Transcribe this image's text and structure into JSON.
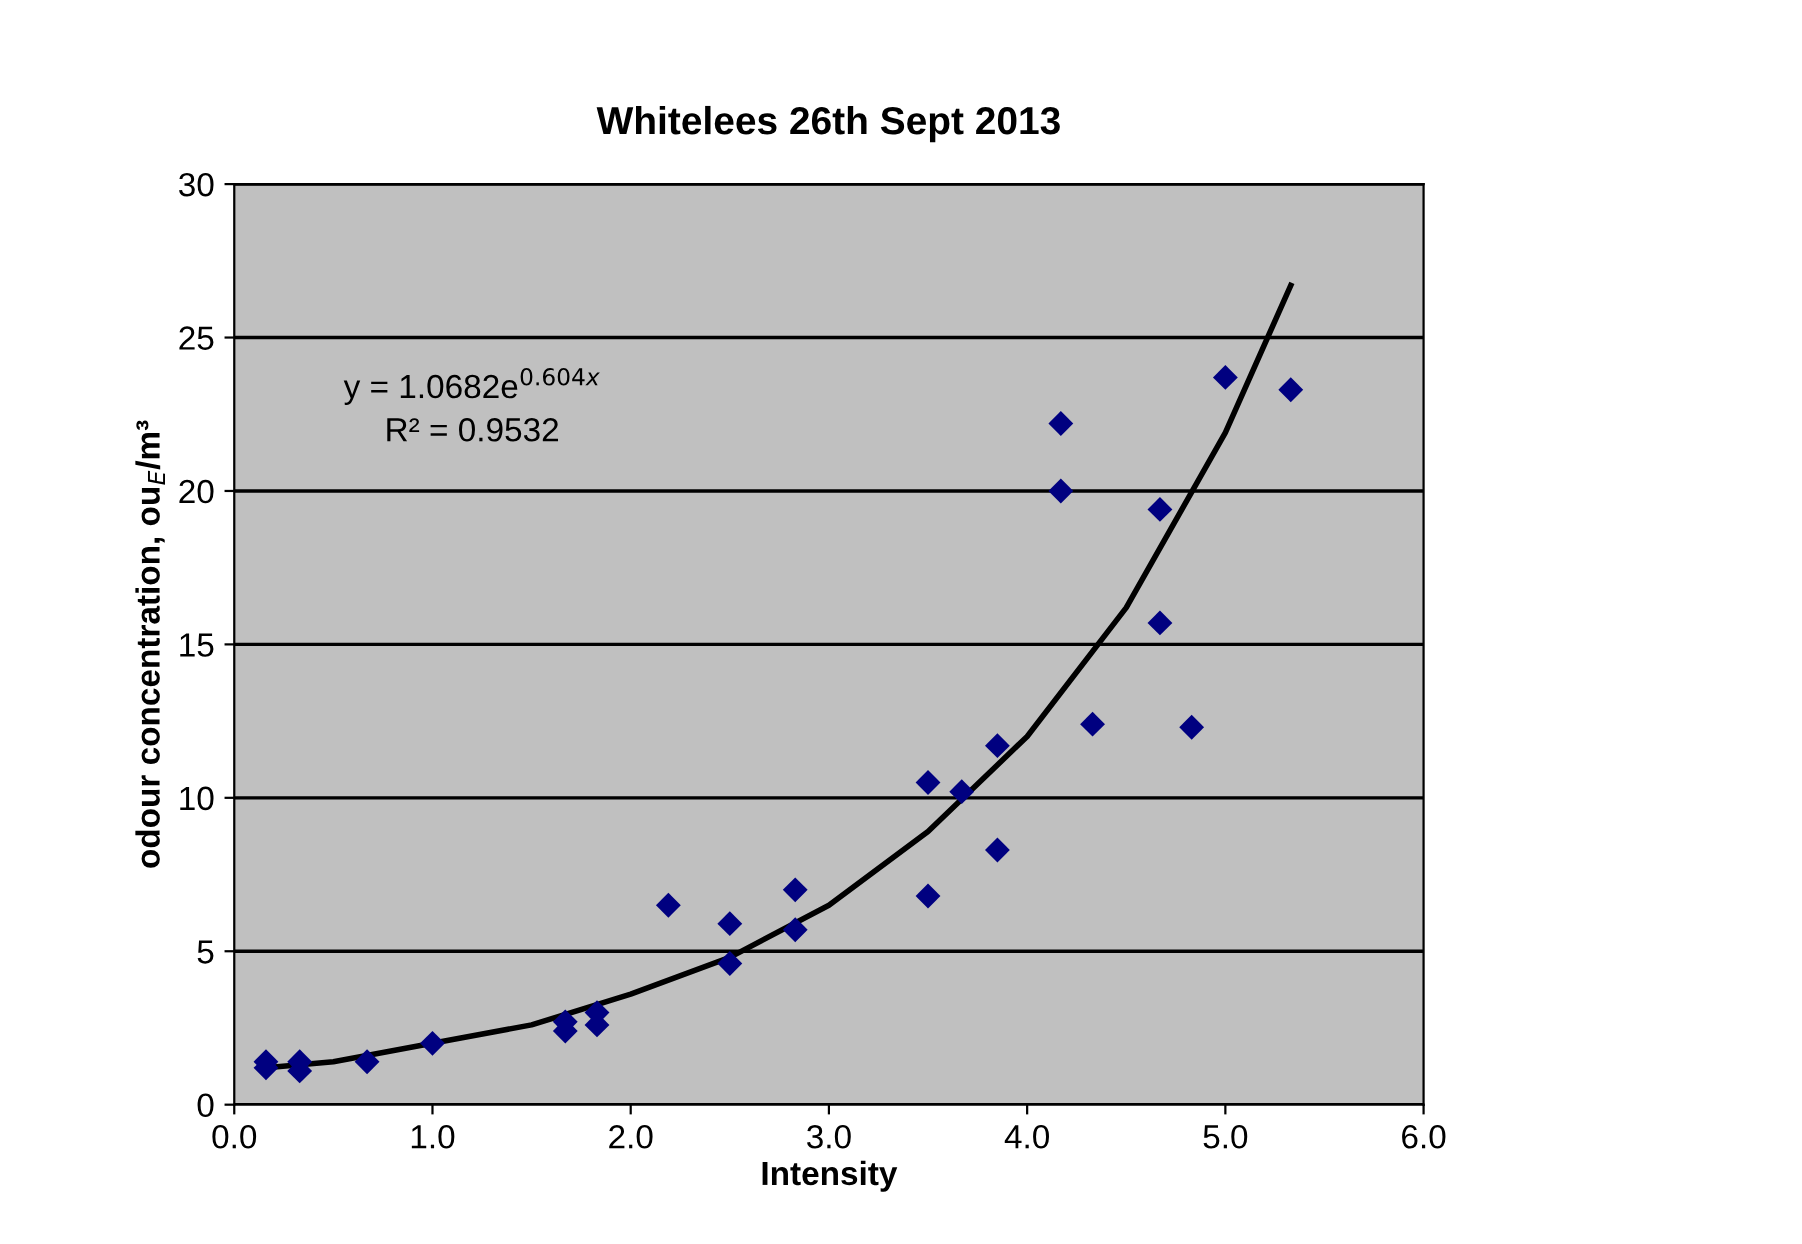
{
  "chart_data": {
    "type": "scatter",
    "title": "Whitelees 26th Sept 2013",
    "xlabel": "Intensity",
    "ylabel": "odour concentration, ou$_{E}$/m³",
    "xlim": [
      0,
      6
    ],
    "ylim": [
      0,
      30
    ],
    "xticks": [
      {
        "value": 0,
        "label": "0.0"
      },
      {
        "value": 1,
        "label": "1.0"
      },
      {
        "value": 2,
        "label": "2.0"
      },
      {
        "value": 3,
        "label": "3.0"
      },
      {
        "value": 4,
        "label": "4.0"
      },
      {
        "value": 5,
        "label": "5.0"
      },
      {
        "value": 6,
        "label": "6.0"
      }
    ],
    "yticks": [
      0,
      5,
      10,
      15,
      20,
      25,
      30
    ],
    "grid": "y",
    "marker": "diamond",
    "series": [
      {
        "color": "#000080",
        "x": [
          0.16,
          0.16,
          0.33,
          0.33,
          0.67,
          1.0,
          1.67,
          1.67,
          1.83,
          1.83,
          2.19,
          2.5,
          2.5,
          2.83,
          2.83,
          3.5,
          3.5,
          3.67,
          3.85,
          3.85,
          4.17,
          4.17,
          4.33,
          4.67,
          4.67,
          4.83,
          5.0,
          5.33
        ],
        "values": [
          1.4,
          1.2,
          1.4,
          1.1,
          1.4,
          2.0,
          2.7,
          2.4,
          3.0,
          2.6,
          6.5,
          5.9,
          4.6,
          7.0,
          5.7,
          10.5,
          6.8,
          10.2,
          11.7,
          8.3,
          22.2,
          20.0,
          12.4,
          19.4,
          15.7,
          12.3,
          23.7,
          23.3
        ]
      },
      {
        "type": "line",
        "color": "#000000",
        "marker": "none",
        "line_style": "solid",
        "x": [
          0.16,
          0.5,
          1.0,
          1.5,
          2.0,
          2.5,
          3.0,
          3.5,
          4.0,
          4.5,
          5.0,
          5.33
        ],
        "values": [
          1.2,
          1.4,
          2.0,
          2.6,
          3.6,
          4.8,
          6.5,
          8.9,
          12.0,
          16.2,
          21.9,
          26.7
        ]
      }
    ],
    "annotations": [
      "y = 1.0682e$^{0.604x}$",
      "R² = 0.9532"
    ]
  }
}
